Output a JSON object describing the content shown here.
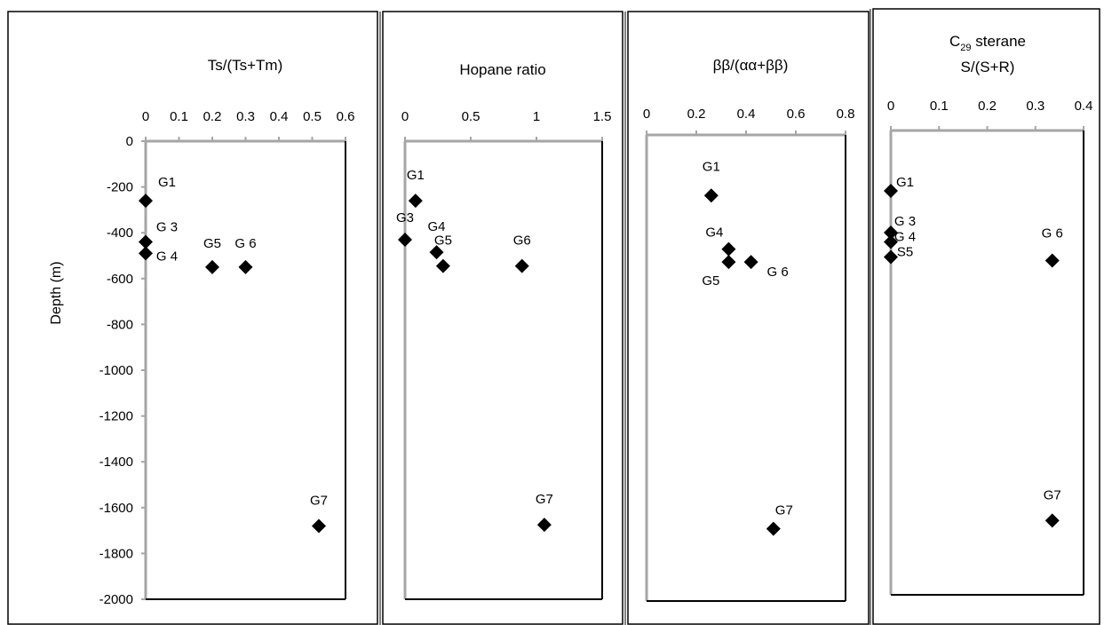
{
  "ylabel": "Depth (m)",
  "chart_data": [
    {
      "type": "scatter",
      "title": "Ts/(Ts+Tm)",
      "xlim": [
        0,
        0.6
      ],
      "xticks": [
        "0",
        "0.1",
        "0.2",
        "0.3",
        "0.4",
        "0.5",
        "0.6"
      ],
      "ylabel": "Depth (m)",
      "ylim": [
        -2000,
        0
      ],
      "yticks": [
        "0",
        "-200",
        "-400",
        "-600",
        "-800",
        "-1000",
        "-1200",
        "-1400",
        "-1600",
        "-1800",
        "-2000"
      ],
      "points": [
        {
          "label": "G1",
          "x": 0.0,
          "y": -260
        },
        {
          "label": "G 3",
          "x": 0.0,
          "y": -440
        },
        {
          "label": "G 4",
          "x": 0.0,
          "y": -490
        },
        {
          "label": "G5",
          "x": 0.2,
          "y": -550
        },
        {
          "label": "G 6",
          "x": 0.3,
          "y": -550
        },
        {
          "label": "G7",
          "x": 0.52,
          "y": -1680
        }
      ]
    },
    {
      "type": "scatter",
      "title": "Hopane ratio",
      "xlim": [
        0,
        1.5
      ],
      "xticks": [
        "0",
        "0.5",
        "1",
        "1.5"
      ],
      "ylim": [
        -2000,
        0
      ],
      "points": [
        {
          "label": "G1",
          "x": 0.08,
          "y": -260
        },
        {
          "label": "G3",
          "x": 0.0,
          "y": -430
        },
        {
          "label": "G4",
          "x": 0.24,
          "y": -485
        },
        {
          "label": "G5",
          "x": 0.29,
          "y": -545
        },
        {
          "label": "G6",
          "x": 0.89,
          "y": -545
        },
        {
          "label": "G7",
          "x": 1.06,
          "y": -1675
        }
      ]
    },
    {
      "type": "scatter",
      "title": "ββ/(αα+ββ)",
      "xlim": [
        0,
        0.8
      ],
      "xticks": [
        "0",
        "0.2",
        "0.4",
        "0.6",
        "0.8"
      ],
      "ylim": [
        -2000,
        0
      ],
      "points": [
        {
          "label": "G1",
          "x": 0.26,
          "y": -260
        },
        {
          "label": "G4",
          "x": 0.33,
          "y": -490
        },
        {
          "label": "G5",
          "x": 0.33,
          "y": -545
        },
        {
          "label": "G 6",
          "x": 0.42,
          "y": -545
        },
        {
          "label": "G7",
          "x": 0.51,
          "y": -1690
        }
      ]
    },
    {
      "type": "scatter",
      "title": "C",
      "title_sub": "29",
      "title_rest": " sterane",
      "title_line2": "S/(S+R)",
      "xlim": [
        0,
        0.4
      ],
      "xticks": [
        "0",
        "0.1",
        "0.2",
        "0.3",
        "0.4"
      ],
      "ylim": [
        -2000,
        0
      ],
      "points": [
        {
          "label": "G1",
          "x": 0.0,
          "y": -260
        },
        {
          "label": "G 3",
          "x": 0.0,
          "y": -440
        },
        {
          "label": "G 4",
          "x": 0.0,
          "y": -480
        },
        {
          "label": "S5",
          "x": 0.0,
          "y": -545
        },
        {
          "label": "G 6",
          "x": 0.335,
          "y": -560
        },
        {
          "label": "G7",
          "x": 0.335,
          "y": -1680
        }
      ]
    }
  ]
}
